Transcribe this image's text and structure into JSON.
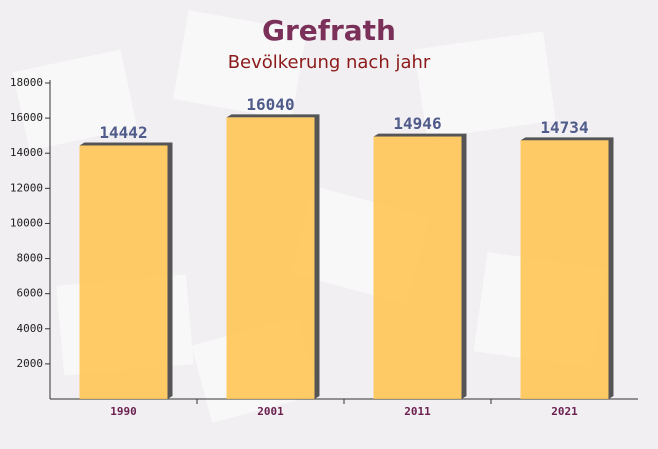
{
  "chart_data": {
    "type": "bar",
    "title": "Grefrath",
    "subtitle": "Bevölkerung nach jahr",
    "categories": [
      "1990",
      "2001",
      "2011",
      "2021"
    ],
    "values": [
      14442,
      16040,
      14946,
      14734
    ],
    "color": "#ffc34d",
    "ylim": [
      0,
      18000
    ],
    "yticks": [
      2000,
      4000,
      6000,
      8000,
      10000,
      12000,
      14000,
      16000,
      18000
    ]
  }
}
